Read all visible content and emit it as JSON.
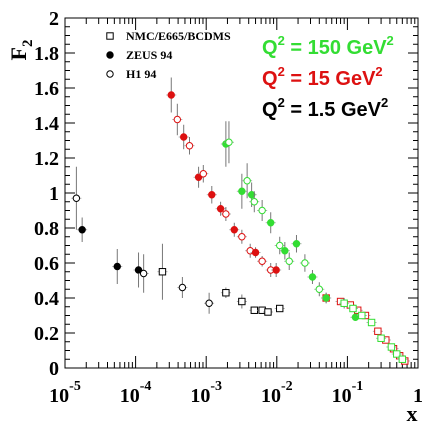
{
  "chart_data": {
    "type": "scatter",
    "title": "",
    "ylabel": "F",
    "ylabel_subscript": "2",
    "xlabel": "x",
    "x_scale": "log",
    "xlim": [
      1e-05,
      1
    ],
    "ylim": [
      0,
      2
    ],
    "grid": false,
    "x_ticks": [
      {
        "value": 1e-05,
        "base": "10",
        "exp": "-5"
      },
      {
        "value": 0.0001,
        "base": "10",
        "exp": "-4"
      },
      {
        "value": 0.001,
        "base": "10",
        "exp": "-3"
      },
      {
        "value": 0.01,
        "base": "10",
        "exp": "-2"
      },
      {
        "value": 0.1,
        "base": "10",
        "exp": "-1"
      },
      {
        "value": 1,
        "base": "1",
        "exp": ""
      }
    ],
    "y_ticks": [
      {
        "value": 0,
        "label": "0"
      },
      {
        "value": 0.2,
        "label": "0.2"
      },
      {
        "value": 0.4,
        "label": "0.4"
      },
      {
        "value": 0.6,
        "label": "0.6"
      },
      {
        "value": 0.8,
        "label": "0.8"
      },
      {
        "value": 1,
        "label": "1"
      },
      {
        "value": 1.2,
        "label": "1.2"
      },
      {
        "value": 1.4,
        "label": "1.4"
      },
      {
        "value": 1.6,
        "label": "1.6"
      },
      {
        "value": 1.8,
        "label": "1.8"
      },
      {
        "value": 2,
        "label": "2"
      }
    ],
    "legend": {
      "placement": "top-left",
      "entries": [
        {
          "marker": "open-square",
          "label": "NMC/E665/BCDMS"
        },
        {
          "marker": "filled-circle",
          "label": "ZEUS 94"
        },
        {
          "marker": "open-circle",
          "label": "H1 94"
        }
      ]
    },
    "annotations": [
      {
        "text": "Q",
        "sup": "2",
        "rest": " = 150 GeV",
        "sup2": "2",
        "color": "#33dd33"
      },
      {
        "text": "Q",
        "sup": "2",
        "rest": " = 15 GeV",
        "sup2": "2",
        "color": "#dd1111"
      },
      {
        "text": "Q",
        "sup": "2",
        "rest": " = 1.5 GeV",
        "sup2": "2",
        "color": "#000000"
      }
    ],
    "series": [
      {
        "name": "Q2 = 1.5 GeV2",
        "color": "#000000",
        "points": [
          {
            "x": 1.45e-05,
            "y": 0.97,
            "err": 0.18,
            "marker": "open-circle"
          },
          {
            "x": 1.75e-05,
            "y": 0.79,
            "err": 0.07,
            "marker": "filled-circle"
          },
          {
            "x": 5.5e-05,
            "y": 0.58,
            "err": 0.1,
            "marker": "filled-circle"
          },
          {
            "x": 0.00011,
            "y": 0.56,
            "err": 0.1,
            "marker": "filled-circle"
          },
          {
            "x": 0.00013,
            "y": 0.54,
            "err": 0.11,
            "marker": "open-circle"
          },
          {
            "x": 0.00024,
            "y": 0.55,
            "err": 0.16,
            "marker": "open-square"
          },
          {
            "x": 0.00046,
            "y": 0.46,
            "err": 0.06,
            "marker": "open-circle"
          },
          {
            "x": 0.0011,
            "y": 0.37,
            "err": 0.06,
            "marker": "open-circle"
          },
          {
            "x": 0.0019,
            "y": 0.43,
            "err": 0.03,
            "marker": "open-square"
          },
          {
            "x": 0.0032,
            "y": 0.38,
            "err": 0.04,
            "marker": "open-square"
          },
          {
            "x": 0.0048,
            "y": 0.33,
            "err": 0.02,
            "marker": "open-square"
          },
          {
            "x": 0.0062,
            "y": 0.33,
            "err": 0.02,
            "marker": "open-square"
          },
          {
            "x": 0.0075,
            "y": 0.32,
            "err": 0.02,
            "marker": "open-square"
          },
          {
            "x": 0.011,
            "y": 0.34,
            "err": 0.02,
            "marker": "open-square"
          }
        ]
      },
      {
        "name": "Q2 = 15 GeV2",
        "color": "#dd1111",
        "points": [
          {
            "x": 0.00032,
            "y": 1.56,
            "err": 0.1,
            "marker": "filled-circle"
          },
          {
            "x": 0.00039,
            "y": 1.42,
            "err": 0.09,
            "marker": "open-circle"
          },
          {
            "x": 0.00048,
            "y": 1.32,
            "err": 0.07,
            "marker": "filled-circle"
          },
          {
            "x": 0.00058,
            "y": 1.27,
            "err": 0.05,
            "marker": "open-circle"
          },
          {
            "x": 0.00078,
            "y": 1.09,
            "err": 0.06,
            "marker": "filled-circle"
          },
          {
            "x": 0.00091,
            "y": 1.11,
            "err": 0.05,
            "marker": "open-circle"
          },
          {
            "x": 0.0012,
            "y": 0.99,
            "err": 0.05,
            "marker": "filled-circle"
          },
          {
            "x": 0.0016,
            "y": 0.91,
            "err": 0.04,
            "marker": "filled-circle"
          },
          {
            "x": 0.0019,
            "y": 0.88,
            "err": 0.04,
            "marker": "open-circle"
          },
          {
            "x": 0.0025,
            "y": 0.79,
            "err": 0.04,
            "marker": "filled-circle"
          },
          {
            "x": 0.0032,
            "y": 0.75,
            "err": 0.04,
            "marker": "open-circle"
          },
          {
            "x": 0.0042,
            "y": 0.67,
            "err": 0.04,
            "marker": "open-circle"
          },
          {
            "x": 0.005,
            "y": 0.66,
            "err": 0.03,
            "marker": "filled-circle"
          },
          {
            "x": 0.0062,
            "y": 0.61,
            "err": 0.03,
            "marker": "open-circle"
          },
          {
            "x": 0.0082,
            "y": 0.56,
            "err": 0.04,
            "marker": "open-circle"
          },
          {
            "x": 0.0098,
            "y": 0.56,
            "err": 0.04,
            "marker": "filled-circle"
          },
          {
            "x": 0.05,
            "y": 0.4,
            "err": 0.03,
            "marker": "open-square"
          },
          {
            "x": 0.08,
            "y": 0.38,
            "err": 0.02,
            "marker": "open-square"
          },
          {
            "x": 0.11,
            "y": 0.36,
            "err": 0.02,
            "marker": "open-square"
          },
          {
            "x": 0.14,
            "y": 0.33,
            "err": 0.02,
            "marker": "open-square"
          },
          {
            "x": 0.18,
            "y": 0.3,
            "err": 0.02,
            "marker": "open-square"
          },
          {
            "x": 0.27,
            "y": 0.21,
            "err": 0.02,
            "marker": "open-square"
          },
          {
            "x": 0.35,
            "y": 0.16,
            "err": 0.02,
            "marker": "open-square"
          },
          {
            "x": 0.45,
            "y": 0.11,
            "err": 0.02,
            "marker": "open-square"
          },
          {
            "x": 0.55,
            "y": 0.07,
            "err": 0.02,
            "marker": "open-square"
          },
          {
            "x": 0.65,
            "y": 0.04,
            "err": 0.02,
            "marker": "open-square"
          }
        ]
      },
      {
        "name": "Q2 = 150 GeV2",
        "color": "#33dd33",
        "points": [
          {
            "x": 0.0019,
            "y": 1.28,
            "err": 0.13,
            "marker": "filled-circle"
          },
          {
            "x": 0.0021,
            "y": 1.29,
            "err": 0.12,
            "marker": "open-circle"
          },
          {
            "x": 0.0032,
            "y": 1.01,
            "err": 0.1,
            "marker": "filled-circle"
          },
          {
            "x": 0.0038,
            "y": 1.07,
            "err": 0.1,
            "marker": "open-circle"
          },
          {
            "x": 0.0044,
            "y": 0.99,
            "err": 0.07,
            "marker": "filled-circle"
          },
          {
            "x": 0.0048,
            "y": 0.95,
            "err": 0.06,
            "marker": "open-circle"
          },
          {
            "x": 0.0062,
            "y": 0.9,
            "err": 0.06,
            "marker": "open-circle"
          },
          {
            "x": 0.0082,
            "y": 0.83,
            "err": 0.06,
            "marker": "filled-circle"
          },
          {
            "x": 0.011,
            "y": 0.7,
            "err": 0.05,
            "marker": "open-circle"
          },
          {
            "x": 0.013,
            "y": 0.67,
            "err": 0.05,
            "marker": "filled-circle"
          },
          {
            "x": 0.015,
            "y": 0.61,
            "err": 0.05,
            "marker": "open-circle"
          },
          {
            "x": 0.019,
            "y": 0.71,
            "err": 0.05,
            "marker": "filled-circle"
          },
          {
            "x": 0.025,
            "y": 0.6,
            "err": 0.05,
            "marker": "open-circle"
          },
          {
            "x": 0.032,
            "y": 0.52,
            "err": 0.04,
            "marker": "filled-circle"
          },
          {
            "x": 0.04,
            "y": 0.45,
            "err": 0.04,
            "marker": "open-circle"
          },
          {
            "x": 0.05,
            "y": 0.4,
            "err": 0.03,
            "marker": "filled-circle"
          },
          {
            "x": 0.09,
            "y": 0.37,
            "err": 0.03,
            "marker": "open-square"
          },
          {
            "x": 0.12,
            "y": 0.34,
            "err": 0.02,
            "marker": "open-square"
          },
          {
            "x": 0.13,
            "y": 0.29,
            "err": 0.02,
            "marker": "filled-circle"
          },
          {
            "x": 0.16,
            "y": 0.3,
            "err": 0.02,
            "marker": "open-square"
          },
          {
            "x": 0.22,
            "y": 0.26,
            "err": 0.02,
            "marker": "open-square"
          },
          {
            "x": 0.3,
            "y": 0.17,
            "err": 0.02,
            "marker": "open-square"
          },
          {
            "x": 0.42,
            "y": 0.12,
            "err": 0.02,
            "marker": "open-square"
          },
          {
            "x": 0.5,
            "y": 0.08,
            "err": 0.02,
            "marker": "open-square"
          },
          {
            "x": 0.6,
            "y": 0.05,
            "err": 0.02,
            "marker": "open-square"
          }
        ]
      }
    ]
  }
}
